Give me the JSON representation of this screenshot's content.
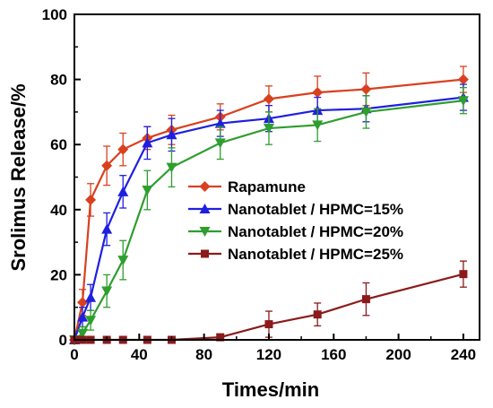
{
  "chart_data": {
    "type": "line",
    "title": "",
    "xlabel": "Times/min",
    "ylabel": "Srolimus Release/%",
    "xlim": [
      0,
      250
    ],
    "ylim": [
      0,
      100
    ],
    "xticks": [
      0,
      40,
      80,
      120,
      160,
      200,
      240
    ],
    "yticks": [
      0,
      20,
      40,
      60,
      80,
      100
    ],
    "grid": false,
    "legend_position": "center-right",
    "error_bars": true,
    "series": [
      {
        "name": "Rapamune",
        "color": "#d9401f",
        "marker": "diamond",
        "x": [
          0,
          5,
          10,
          20,
          30,
          45,
          60,
          90,
          120,
          150,
          180,
          240
        ],
        "y": [
          0,
          11.5,
          43,
          53.5,
          58.5,
          62,
          64.5,
          68.5,
          74,
          76,
          77,
          80
        ],
        "err": [
          0,
          4,
          5,
          6,
          5,
          3.5,
          4.5,
          4,
          4,
          5,
          5,
          4
        ]
      },
      {
        "name": "Nanotablet / HPMC=15%",
        "color": "#1f1fe0",
        "marker": "triangle-up",
        "x": [
          0,
          5,
          10,
          20,
          30,
          45,
          60,
          90,
          120,
          150,
          180,
          240
        ],
        "y": [
          0,
          7,
          13,
          34,
          45.5,
          60.5,
          63,
          66.5,
          68,
          70.5,
          71,
          74.5
        ],
        "err": [
          0,
          3,
          4,
          5,
          5,
          5,
          5,
          4,
          4,
          4,
          4,
          4
        ]
      },
      {
        "name": "Nanotablet / HPMC=20%",
        "color": "#2e9e2e",
        "marker": "triangle-down",
        "x": [
          0,
          5,
          10,
          20,
          30,
          45,
          60,
          90,
          120,
          150,
          180,
          240
        ],
        "y": [
          0,
          2,
          6,
          15,
          24.5,
          46,
          53,
          60.5,
          65,
          66,
          70,
          73.5
        ],
        "err": [
          0,
          2,
          3,
          5,
          6,
          6,
          6,
          5,
          5,
          5,
          5,
          4
        ]
      },
      {
        "name": "Nanotablet / HPMC=25%",
        "color": "#8b1a1a",
        "marker": "square",
        "x": [
          0,
          5,
          10,
          20,
          30,
          45,
          60,
          90,
          120,
          150,
          180,
          240
        ],
        "y": [
          0,
          0,
          0,
          0,
          0,
          0,
          0,
          0.8,
          4.8,
          7.8,
          12.5,
          20.2
        ],
        "err": [
          0,
          0,
          0,
          0,
          0,
          0,
          0,
          0.8,
          4,
          3.5,
          5,
          4
        ]
      }
    ]
  }
}
